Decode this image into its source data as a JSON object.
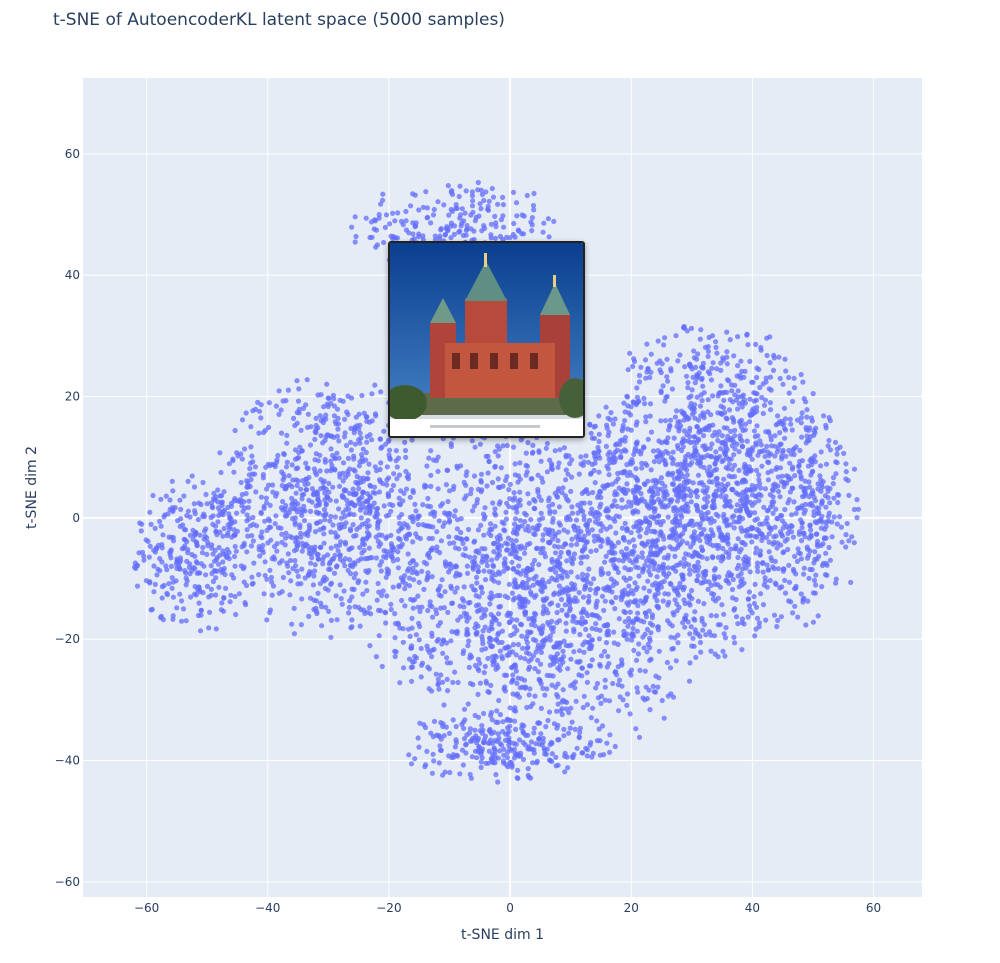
{
  "chart_data": {
    "type": "scatter",
    "title": "t-SNE of AutoencoderKL latent space (5000 samples)",
    "xlabel": "t-SNE dim 1",
    "ylabel": "t-SNE dim 2",
    "xlim": [
      -70.5,
      68
    ],
    "ylim": [
      -62.5,
      72.5
    ],
    "xticks": [
      -60,
      -40,
      -20,
      0,
      20,
      40,
      60
    ],
    "yticks": [
      -60,
      -40,
      -20,
      0,
      20,
      40,
      60
    ],
    "grid": true,
    "n_points": 5000,
    "marker_color": "#636efa",
    "marker_opacity": 0.75,
    "plot_background": "#e5ecf6",
    "point_regions": [
      {
        "cx": -9,
        "cy": 48,
        "rx": 18,
        "ry": 8,
        "share": 0.045
      },
      {
        "cx": -52,
        "cy": -6,
        "rx": 11,
        "ry": 13,
        "share": 0.06
      },
      {
        "cx": -30,
        "cy": 2,
        "rx": 20,
        "ry": 22,
        "share": 0.18
      },
      {
        "cx": 5,
        "cy": -12,
        "rx": 30,
        "ry": 30,
        "share": 0.34
      },
      {
        "cx": 33,
        "cy": 5,
        "rx": 22,
        "ry": 28,
        "share": 0.3
      },
      {
        "cx": -2,
        "cy": -38,
        "rx": 18,
        "ry": 6,
        "share": 0.04
      },
      {
        "cx": 50,
        "cy": 0,
        "rx": 8,
        "ry": 18,
        "share": 0.035
      }
    ],
    "hover_image": {
      "description_icon": "cathedral-thumbnail-icon",
      "x": -4,
      "y": 30
    }
  }
}
